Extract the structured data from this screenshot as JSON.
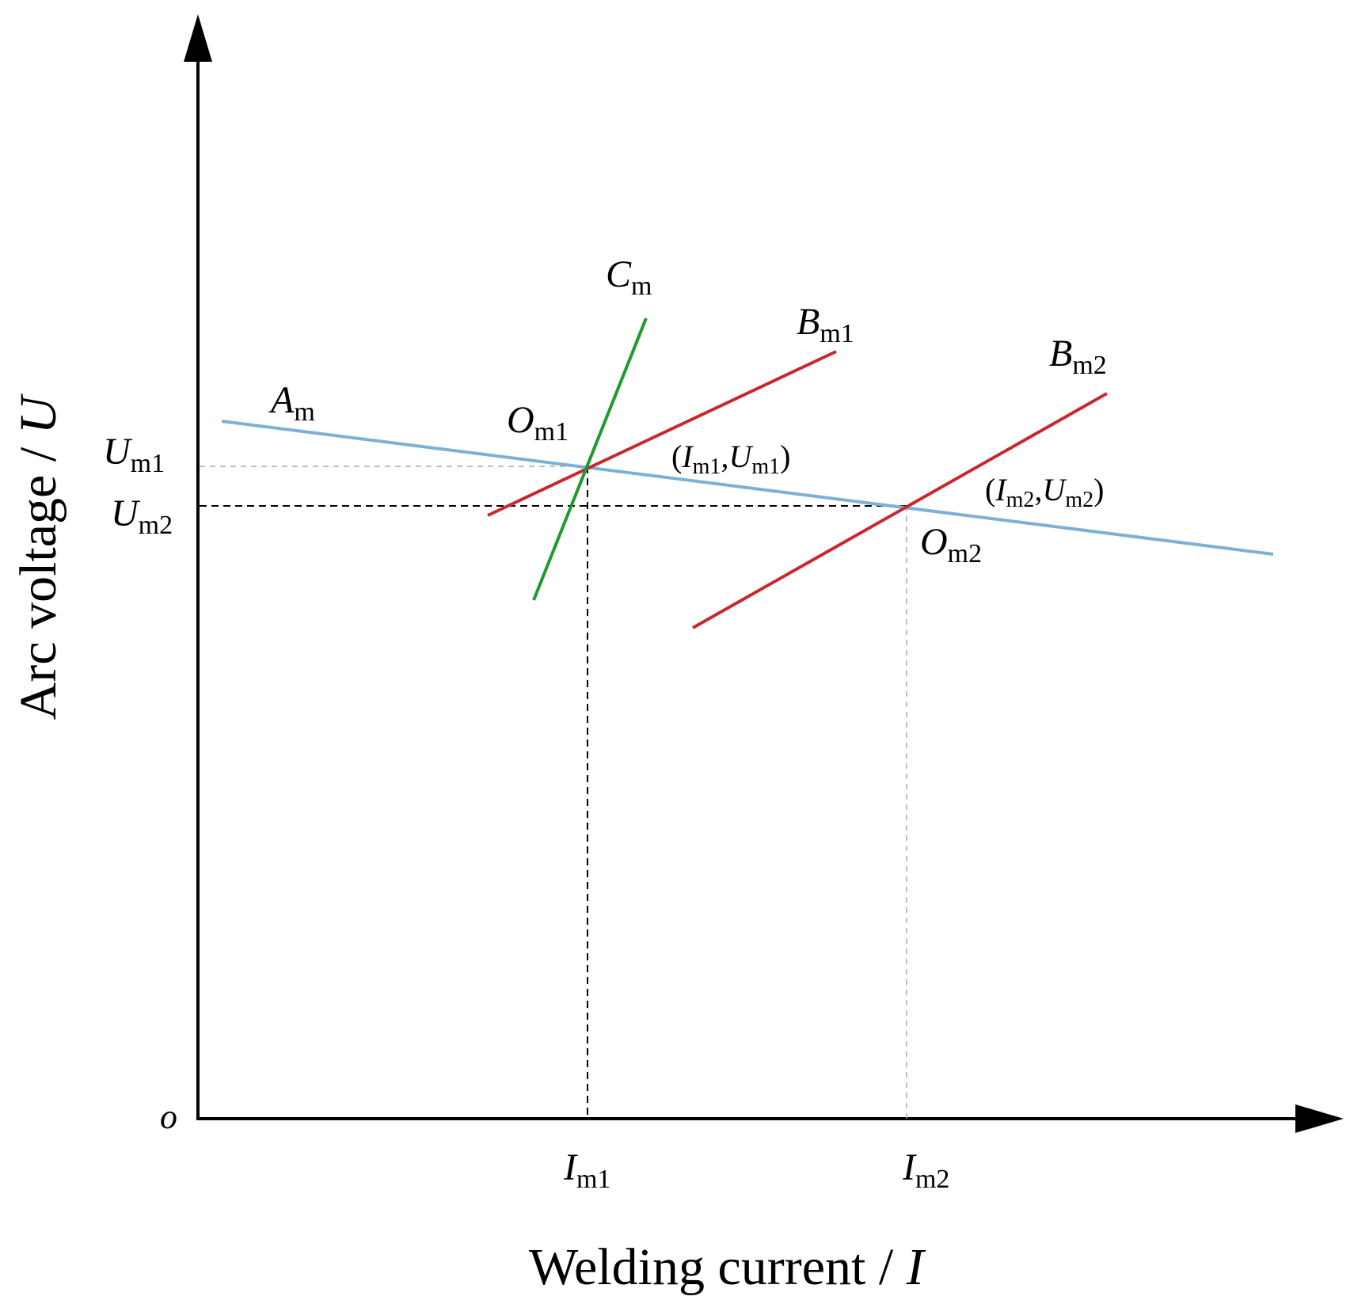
{
  "axes": {
    "x_label_text": "Welding current / ",
    "x_label_var": "I",
    "y_label_text": "Arc voltage / ",
    "y_label_var": "U",
    "origin": "o"
  },
  "ticks": {
    "x": [
      {
        "var": "I",
        "sub": "m1"
      },
      {
        "var": "I",
        "sub": "m2"
      }
    ],
    "y": [
      {
        "var": "U",
        "sub": "m1"
      },
      {
        "var": "U",
        "sub": "m2"
      }
    ]
  },
  "curves": {
    "A": {
      "var": "A",
      "sub": "m",
      "color": "#7eb0d6"
    },
    "B1": {
      "var": "B",
      "sub": "m1",
      "color": "#c8282d"
    },
    "B2": {
      "var": "B",
      "sub": "m2",
      "color": "#c8282d"
    },
    "C": {
      "var": "C",
      "sub": "m",
      "color": "#1f9a2e"
    }
  },
  "points": {
    "O1": {
      "var": "O",
      "sub": "m1",
      "coord_open": "(",
      "coord_i": "I",
      "coord_i_sub": "m1",
      "coord_sep": ",",
      "coord_u": "U",
      "coord_u_sub": "m1",
      "coord_close": ")"
    },
    "O2": {
      "var": "O",
      "sub": "m2",
      "coord_open": "(",
      "coord_i": "I",
      "coord_i_sub": "m2",
      "coord_sep": ",",
      "coord_u": "U",
      "coord_u_sub": "m2",
      "coord_close": ")"
    }
  }
}
